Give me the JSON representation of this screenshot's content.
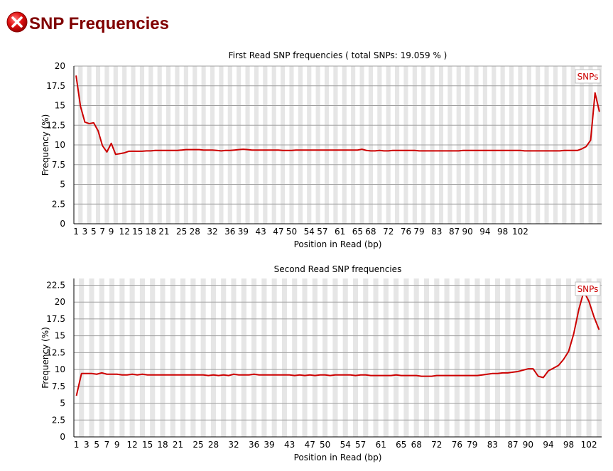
{
  "page": {
    "title": "SNP Frequencies",
    "status_icon": "fail-x-icon",
    "status_color": "#cc0000"
  },
  "chart_data": [
    {
      "type": "line",
      "title": "First Read SNP frequencies ( total SNPs: 19.059 % )",
      "xlabel": "Position in Read (bp)",
      "ylabel": "Frequency (%)",
      "ylim": [
        0,
        20
      ],
      "yticks": [
        "0",
        "2.5",
        "5",
        "7.5",
        "10",
        "12.5",
        "15",
        "17.5",
        "20"
      ],
      "xticks": [
        "1",
        "3",
        "5",
        "7",
        "9",
        "12",
        "15",
        "18",
        "21",
        "25",
        "28",
        "32",
        "36",
        "39",
        "43",
        "47",
        "50",
        "54",
        "57",
        "61",
        "65",
        "68",
        "72",
        "76",
        "79",
        "83",
        "87",
        "90",
        "94",
        "98",
        "102"
      ],
      "legend_position": "top-right",
      "background": "alternating-stripes",
      "series": [
        {
          "name": "SNPs",
          "color": "#cc0000",
          "values": [
            18.8,
            14.9,
            12.9,
            12.7,
            12.8,
            11.8,
            9.9,
            9.1,
            10.2,
            8.8,
            8.9,
            9.0,
            9.2,
            9.2,
            9.2,
            9.2,
            9.25,
            9.25,
            9.3,
            9.3,
            9.3,
            9.3,
            9.3,
            9.3,
            9.35,
            9.4,
            9.4,
            9.4,
            9.4,
            9.35,
            9.35,
            9.35,
            9.3,
            9.25,
            9.3,
            9.3,
            9.35,
            9.4,
            9.45,
            9.4,
            9.35,
            9.35,
            9.35,
            9.35,
            9.35,
            9.35,
            9.35,
            9.3,
            9.3,
            9.3,
            9.35,
            9.35,
            9.35,
            9.35,
            9.35,
            9.35,
            9.35,
            9.35,
            9.35,
            9.35,
            9.35,
            9.35,
            9.35,
            9.35,
            9.35,
            9.45,
            9.3,
            9.25,
            9.25,
            9.3,
            9.25,
            9.25,
            9.3,
            9.3,
            9.3,
            9.3,
            9.3,
            9.3,
            9.25,
            9.25,
            9.25,
            9.25,
            9.25,
            9.25,
            9.25,
            9.25,
            9.25,
            9.25,
            9.3,
            9.3,
            9.3,
            9.3,
            9.3,
            9.3,
            9.3,
            9.3,
            9.3,
            9.3,
            9.3,
            9.3,
            9.3,
            9.3,
            9.25,
            9.25,
            9.25,
            9.25,
            9.25,
            9.25,
            9.25,
            9.25,
            9.25,
            9.3,
            9.3,
            9.3,
            9.3,
            9.5,
            9.8,
            10.6,
            16.6,
            14.2
          ]
        }
      ]
    },
    {
      "type": "line",
      "title": "Second Read SNP frequencies",
      "xlabel": "Position in Read (bp)",
      "ylabel": "Frequency (%)",
      "ylim": [
        0,
        23.5
      ],
      "yticks": [
        "0",
        "2.5",
        "5",
        "7.5",
        "10",
        "12.5",
        "15",
        "17.5",
        "20",
        "22.5"
      ],
      "xticks": [
        "1",
        "3",
        "5",
        "7",
        "9",
        "12",
        "15",
        "18",
        "21",
        "25",
        "28",
        "32",
        "36",
        "39",
        "43",
        "47",
        "50",
        "54",
        "57",
        "61",
        "65",
        "68",
        "72",
        "76",
        "79",
        "83",
        "87",
        "90",
        "94",
        "98",
        "102"
      ],
      "legend_position": "top-right",
      "background": "alternating-stripes",
      "series": [
        {
          "name": "SNPs",
          "color": "#cc0000",
          "values": [
            6.1,
            9.4,
            9.4,
            9.4,
            9.3,
            9.5,
            9.3,
            9.3,
            9.3,
            9.2,
            9.2,
            9.3,
            9.2,
            9.3,
            9.2,
            9.2,
            9.2,
            9.2,
            9.2,
            9.2,
            9.2,
            9.2,
            9.2,
            9.2,
            9.2,
            9.2,
            9.1,
            9.2,
            9.1,
            9.2,
            9.1,
            9.3,
            9.2,
            9.2,
            9.2,
            9.3,
            9.2,
            9.2,
            9.2,
            9.2,
            9.2,
            9.2,
            9.2,
            9.1,
            9.2,
            9.1,
            9.2,
            9.1,
            9.2,
            9.2,
            9.1,
            9.2,
            9.2,
            9.2,
            9.2,
            9.1,
            9.2,
            9.2,
            9.1,
            9.1,
            9.1,
            9.1,
            9.1,
            9.2,
            9.1,
            9.1,
            9.1,
            9.1,
            9.0,
            9.0,
            9.0,
            9.1,
            9.1,
            9.1,
            9.1,
            9.1,
            9.1,
            9.1,
            9.1,
            9.1,
            9.2,
            9.3,
            9.4,
            9.4,
            9.5,
            9.5,
            9.6,
            9.7,
            9.9,
            10.1,
            10.1,
            9.0,
            8.8,
            9.8,
            10.2,
            10.6,
            11.5,
            12.7,
            15.3,
            18.9,
            21.6,
            20.1,
            17.8,
            15.9
          ]
        }
      ]
    }
  ]
}
